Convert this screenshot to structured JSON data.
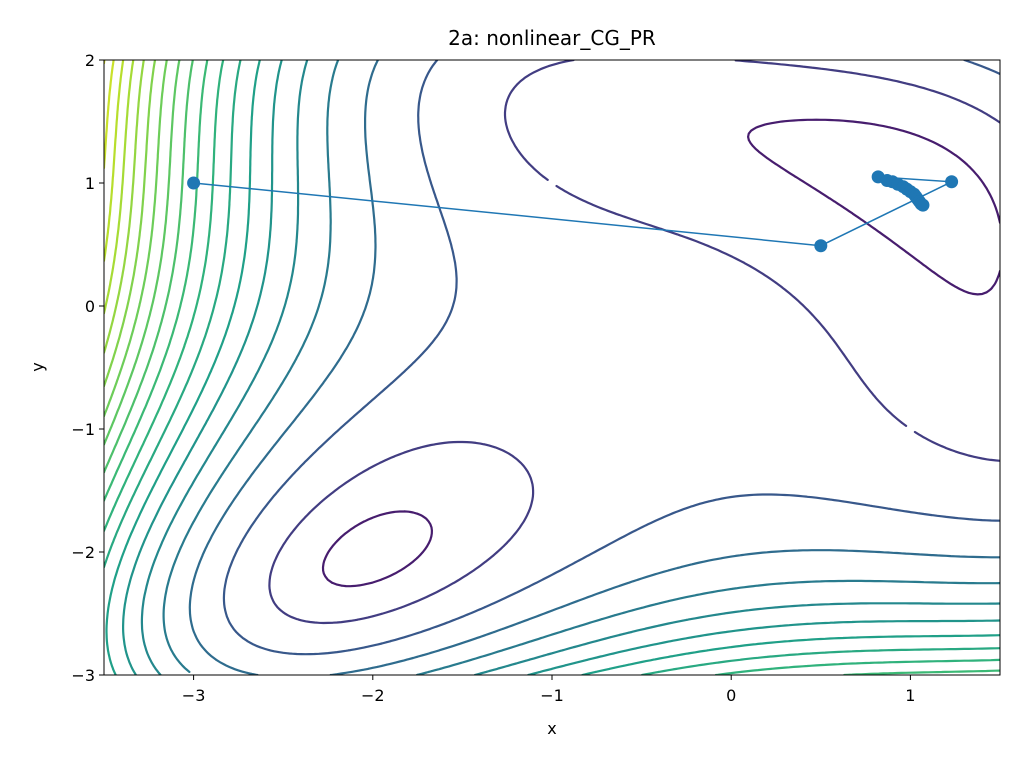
{
  "chart_data": {
    "type": "line",
    "title": "2a: nonlinear_CG_PR",
    "xlabel": "x",
    "ylabel": "y",
    "xlim": [
      -3.5,
      1.5
    ],
    "ylim": [
      -3,
      2
    ],
    "xticks": [
      -3,
      -2,
      -1,
      0,
      1
    ],
    "yticks": [
      -3,
      -2,
      -1,
      0,
      1,
      2
    ],
    "xtick_labels": [
      "−3",
      "−2",
      "−1",
      "0",
      "1"
    ],
    "ytick_labels": [
      "−3",
      "−2",
      "−1",
      "0",
      "1",
      "2"
    ],
    "grid": false,
    "background": "contour",
    "contour_colormap": "viridis",
    "series": [
      {
        "color": "#1f77b4",
        "marker": "circle",
        "x": [
          -3.0,
          0.5,
          1.23,
          0.82,
          0.87,
          0.9,
          0.93,
          0.96,
          0.98,
          1.0,
          1.02,
          1.03,
          1.04,
          1.05,
          1.06,
          1.07
        ],
        "y": [
          1.0,
          0.49,
          1.01,
          1.05,
          1.02,
          1.01,
          0.99,
          0.97,
          0.95,
          0.93,
          0.91,
          0.89,
          0.87,
          0.85,
          0.83,
          0.82
        ]
      }
    ]
  }
}
